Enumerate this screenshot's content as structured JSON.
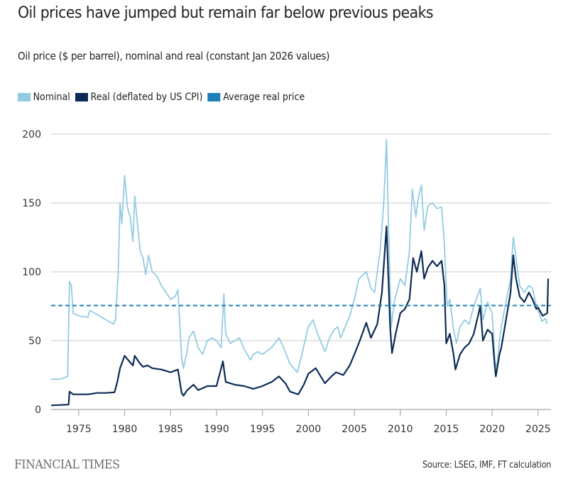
{
  "header": {
    "title": "Oil prices have jumped but remain far below previous peaks",
    "subtitle": "Oil price ($ per barrel), nominal and real (constant Jan 2026 values)"
  },
  "footer": {
    "brand": "FINANCIAL TIMES",
    "source": "Source: LSEG, IMF, FT calculation"
  },
  "colors": {
    "nominal": "#93cce2",
    "real": "#0d2b55",
    "average": "#1f7fb8",
    "grid": "#d4d4d4",
    "axis": "#a8a8a8"
  },
  "chart_data": {
    "type": "line",
    "title": "Oil prices have jumped but remain far below previous peaks",
    "subtitle": "Oil price ($ per barrel), nominal and real (constant Jan 2026 values)",
    "xlabel": "",
    "ylabel": "",
    "xlim": [
      1972,
      2026.4
    ],
    "ylim": [
      0,
      200
    ],
    "grid": true,
    "legend_position": "top-left",
    "x_ticks": [
      1975,
      1980,
      1985,
      1990,
      1995,
      2000,
      2005,
      2010,
      2015,
      2020,
      2025
    ],
    "y_ticks": [
      0,
      50,
      100,
      150,
      200
    ],
    "legend": [
      {
        "key": "nominal",
        "label": "Nominal"
      },
      {
        "key": "real",
        "label": "Real (deflated by US CPI)"
      },
      {
        "key": "average",
        "label": "Average real price"
      }
    ],
    "average_real_price": 75.5,
    "series": [
      {
        "name": "Nominal",
        "key": "nominal",
        "x": [
          1972.0,
          1973.0,
          1973.8,
          1974.0,
          1974.2,
          1974.4,
          1975.0,
          1976.0,
          1976.2,
          1977.0,
          1978.0,
          1978.8,
          1979.0,
          1979.3,
          1979.5,
          1979.7,
          1980.0,
          1980.3,
          1980.6,
          1980.9,
          1981.1,
          1981.4,
          1981.7,
          1982.0,
          1982.3,
          1982.6,
          1983.0,
          1983.5,
          1984.0,
          1984.5,
          1985.0,
          1985.5,
          1985.8,
          1986.2,
          1986.4,
          1986.8,
          1987.0,
          1987.5,
          1988.0,
          1988.5,
          1989.0,
          1989.5,
          1990.0,
          1990.5,
          1990.8,
          1991.0,
          1991.5,
          1992.0,
          1992.5,
          1993.0,
          1993.7,
          1994.0,
          1994.5,
          1995.0,
          1996.0,
          1996.8,
          1997.3,
          1998.0,
          1998.8,
          1999.3,
          1999.8,
          2000.0,
          2000.5,
          2001.0,
          2001.8,
          2002.3,
          2002.8,
          2003.2,
          2003.5,
          2004.0,
          2004.5,
          2005.0,
          2005.5,
          2006.3,
          2006.8,
          2007.2,
          2007.8,
          2008.2,
          2008.5,
          2008.7,
          2009.0,
          2009.4,
          2010.0,
          2010.5,
          2011.0,
          2011.3,
          2011.7,
          2012.0,
          2012.3,
          2012.6,
          2013.0,
          2013.5,
          2014.0,
          2014.5,
          2014.8,
          2015.1,
          2015.4,
          2015.8,
          2016.1,
          2016.5,
          2017.0,
          2017.5,
          2018.0,
          2018.7,
          2019.0,
          2019.5,
          2020.0,
          2020.3,
          2020.5,
          2020.8,
          2021.0,
          2021.5,
          2022.0,
          2022.3,
          2022.6,
          2023.0,
          2023.5,
          2024.0,
          2024.4,
          2024.8,
          2025.0,
          2025.4,
          2025.8,
          2026.0
        ],
        "values": [
          22,
          22,
          24,
          93,
          90,
          70,
          68,
          67,
          72,
          69,
          65,
          62,
          65,
          100,
          150,
          135,
          170,
          147,
          140,
          122,
          155,
          135,
          115,
          110,
          98,
          112,
          100,
          97,
          90,
          85,
          80,
          82,
          87,
          38,
          30,
          42,
          52,
          57,
          45,
          40,
          50,
          52,
          50,
          45,
          84,
          55,
          48,
          50,
          52,
          44,
          36,
          40,
          42,
          40,
          45,
          52,
          45,
          33,
          27,
          40,
          55,
          60,
          65,
          55,
          42,
          52,
          58,
          60,
          52,
          60,
          68,
          80,
          95,
          100,
          88,
          85,
          115,
          150,
          196,
          140,
          60,
          80,
          95,
          90,
          115,
          160,
          140,
          155,
          163,
          130,
          148,
          150,
          146,
          147,
          120,
          75,
          80,
          58,
          48,
          60,
          65,
          62,
          75,
          88,
          65,
          78,
          70,
          35,
          30,
          50,
          60,
          78,
          95,
          125,
          110,
          90,
          85,
          90,
          88,
          75,
          72,
          64,
          66,
          62
        ]
      },
      {
        "name": "Real (deflated by US CPI)",
        "key": "real",
        "x": [
          1972.0,
          1973.9,
          1974.0,
          1974.4,
          1975.0,
          1976.0,
          1977.0,
          1978.0,
          1978.9,
          1979.2,
          1979.5,
          1980.0,
          1980.5,
          1980.9,
          1981.1,
          1981.6,
          1982.0,
          1982.5,
          1983.0,
          1984.0,
          1985.0,
          1985.8,
          1986.2,
          1986.4,
          1986.8,
          1987.5,
          1988.0,
          1989.0,
          1990.0,
          1990.7,
          1991.0,
          1992.0,
          1993.0,
          1994.0,
          1995.0,
          1996.0,
          1996.8,
          1997.5,
          1998.0,
          1998.9,
          1999.5,
          2000.0,
          2000.8,
          2001.8,
          2002.5,
          2003.0,
          2003.8,
          2004.5,
          2005.0,
          2005.6,
          2006.3,
          2006.8,
          2007.5,
          2008.0,
          2008.5,
          2008.9,
          2009.1,
          2009.5,
          2010.0,
          2010.5,
          2011.0,
          2011.4,
          2011.8,
          2012.3,
          2012.6,
          2013.0,
          2013.5,
          2014.0,
          2014.5,
          2014.8,
          2015.0,
          2015.4,
          2015.8,
          2016.0,
          2016.5,
          2017.0,
          2017.5,
          2018.0,
          2018.7,
          2019.0,
          2019.5,
          2020.0,
          2020.3,
          2020.4,
          2020.8,
          2021.0,
          2021.5,
          2022.0,
          2022.3,
          2022.6,
          2023.0,
          2023.5,
          2024.0,
          2024.4,
          2024.8,
          2025.0,
          2025.5,
          2026.0,
          2026.1
        ],
        "values": [
          3,
          3.5,
          13,
          11,
          11,
          11,
          12,
          12,
          12.5,
          20,
          30,
          39,
          35,
          32,
          39,
          34,
          31,
          32,
          30,
          29,
          27,
          29,
          12,
          10,
          14,
          18,
          14,
          17,
          17,
          35,
          20,
          18,
          17,
          15,
          17,
          20,
          24,
          19,
          13,
          11,
          18,
          26,
          30,
          19,
          24,
          27,
          25,
          32,
          40,
          50,
          63,
          52,
          62,
          85,
          133,
          60,
          41,
          55,
          70,
          73,
          80,
          110,
          100,
          115,
          95,
          103,
          108,
          104,
          108,
          90,
          48,
          55,
          40,
          29,
          40,
          45,
          48,
          55,
          75,
          50,
          58,
          55,
          30,
          24,
          40,
          45,
          65,
          85,
          112,
          95,
          82,
          78,
          85,
          80,
          73,
          74,
          68,
          70,
          95
        ]
      }
    ]
  }
}
